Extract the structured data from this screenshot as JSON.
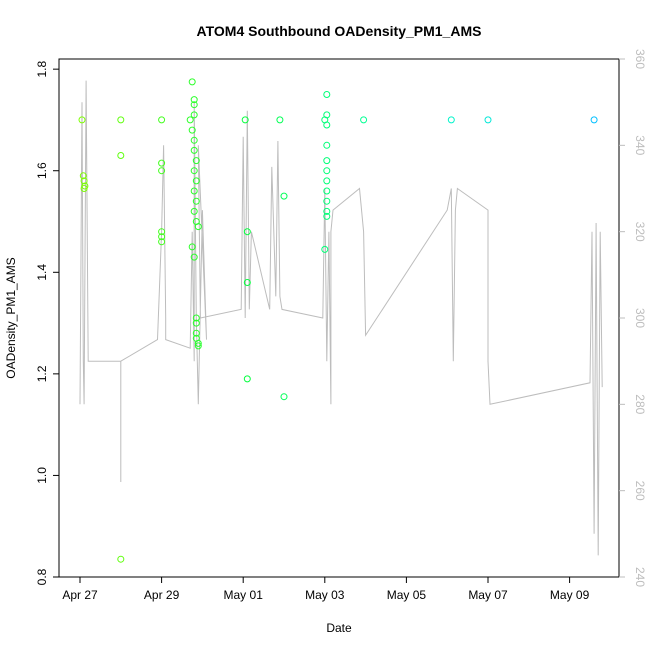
{
  "chart_data": {
    "type": "scatter",
    "title": "ATOM4 Southbound OADensity_PM1_AMS",
    "xlabel": "Date",
    "ylabel": "OADensity_PM1_AMS",
    "x_ticks": [
      "Apr 27",
      "Apr 29",
      "May 01",
      "May 03",
      "May 05",
      "May 07",
      "May 09"
    ],
    "y_ticks": [
      "0.8",
      "1.0",
      "1.2",
      "1.4",
      "1.6",
      "1.8"
    ],
    "y2_ticks": [
      "240",
      "260",
      "280",
      "300",
      "320",
      "340",
      "360"
    ],
    "xlim": [
      -0.3,
      13.2
    ],
    "ylim": [
      0.8,
      1.82
    ],
    "y2lim": [
      240,
      360
    ],
    "grid": false,
    "colors": {
      "points_ramp": [
        "#7fff00",
        "#00ff3f",
        "#00ffbf",
        "#00bfff"
      ],
      "secondary_line": "#bdbdbd",
      "axis": "#000000",
      "secondary_axis": "#bdbdbd"
    },
    "series": [
      {
        "values": [
          [
            0.05,
            1.7
          ],
          [
            0.08,
            1.59
          ],
          [
            0.1,
            1.58
          ],
          [
            0.1,
            1.565
          ],
          [
            0.12,
            1.57
          ],
          [
            1.0,
            1.7
          ],
          [
            1.0,
            1.63
          ],
          [
            1.0,
            0.835
          ],
          [
            2.0,
            1.7
          ],
          [
            2.0,
            1.615
          ],
          [
            2.0,
            1.6
          ],
          [
            2.0,
            1.48
          ],
          [
            2.0,
            1.47
          ],
          [
            2.0,
            1.46
          ],
          [
            2.7,
            1.7
          ],
          [
            2.75,
            1.775
          ],
          [
            2.8,
            1.74
          ],
          [
            2.8,
            1.73
          ],
          [
            2.8,
            1.71
          ],
          [
            2.75,
            1.68
          ],
          [
            2.8,
            1.66
          ],
          [
            2.8,
            1.64
          ],
          [
            2.85,
            1.62
          ],
          [
            2.8,
            1.6
          ],
          [
            2.85,
            1.58
          ],
          [
            2.8,
            1.56
          ],
          [
            2.85,
            1.54
          ],
          [
            2.8,
            1.52
          ],
          [
            2.85,
            1.5
          ],
          [
            2.9,
            1.49
          ],
          [
            2.8,
            1.43
          ],
          [
            2.85,
            1.31
          ],
          [
            2.85,
            1.3
          ],
          [
            2.85,
            1.28
          ],
          [
            2.85,
            1.27
          ],
          [
            2.9,
            1.26
          ],
          [
            2.9,
            1.255
          ],
          [
            2.75,
            1.45
          ],
          [
            4.05,
            1.7
          ],
          [
            4.1,
            1.48
          ],
          [
            4.1,
            1.38
          ],
          [
            4.1,
            1.19
          ],
          [
            4.9,
            1.7
          ],
          [
            5.0,
            1.55
          ],
          [
            5.0,
            1.155
          ],
          [
            6.0,
            1.7
          ],
          [
            6.05,
            1.75
          ],
          [
            6.05,
            1.71
          ],
          [
            6.05,
            1.69
          ],
          [
            6.05,
            1.65
          ],
          [
            6.05,
            1.62
          ],
          [
            6.05,
            1.6
          ],
          [
            6.05,
            1.58
          ],
          [
            6.05,
            1.56
          ],
          [
            6.05,
            1.54
          ],
          [
            6.05,
            1.52
          ],
          [
            6.05,
            1.51
          ],
          [
            6.0,
            1.445
          ],
          [
            6.95,
            1.7
          ],
          [
            9.1,
            1.7
          ],
          [
            10.0,
            1.7
          ],
          [
            12.6,
            1.7
          ]
        ]
      },
      {
        "axis": "right",
        "values": [
          [
            0.0,
            280
          ],
          [
            0.05,
            350
          ],
          [
            0.08,
            290
          ],
          [
            0.1,
            280
          ],
          [
            0.15,
            355
          ],
          [
            0.2,
            290
          ],
          [
            1.0,
            290
          ],
          [
            1.0,
            270
          ],
          [
            1.0,
            262
          ],
          [
            1.0,
            290
          ],
          [
            1.9,
            295
          ],
          [
            2.0,
            320
          ],
          [
            2.05,
            340
          ],
          [
            2.1,
            300
          ],
          [
            2.1,
            295
          ],
          [
            2.7,
            293
          ],
          [
            2.75,
            320
          ],
          [
            2.8,
            290
          ],
          [
            2.8,
            350
          ],
          [
            2.85,
            300
          ],
          [
            2.9,
            280
          ],
          [
            3.0,
            325
          ],
          [
            3.1,
            295
          ],
          [
            2.9,
            340
          ],
          [
            2.95,
            300
          ],
          [
            3.95,
            302
          ],
          [
            4.0,
            342
          ],
          [
            4.05,
            300
          ],
          [
            4.1,
            348
          ],
          [
            4.15,
            302
          ],
          [
            4.2,
            320
          ],
          [
            4.65,
            302
          ],
          [
            4.7,
            335
          ],
          [
            4.8,
            305
          ],
          [
            4.85,
            341
          ],
          [
            4.9,
            305
          ],
          [
            4.95,
            302
          ],
          [
            5.95,
            300
          ],
          [
            6.0,
            330
          ],
          [
            6.05,
            290
          ],
          [
            6.1,
            320
          ],
          [
            6.15,
            280
          ],
          [
            6.15,
            320
          ],
          [
            6.2,
            325
          ],
          [
            6.85,
            330
          ],
          [
            6.95,
            320
          ],
          [
            7.0,
            296
          ],
          [
            9.0,
            325
          ],
          [
            9.1,
            330
          ],
          [
            9.15,
            290
          ],
          [
            9.2,
            325
          ],
          [
            9.25,
            330
          ],
          [
            10.0,
            325
          ],
          [
            10.0,
            290
          ],
          [
            10.05,
            280
          ],
          [
            12.5,
            285
          ],
          [
            12.55,
            320
          ],
          [
            12.6,
            250
          ],
          [
            12.65,
            322
          ],
          [
            12.7,
            245
          ],
          [
            12.75,
            320
          ],
          [
            12.8,
            284
          ]
        ]
      }
    ]
  }
}
